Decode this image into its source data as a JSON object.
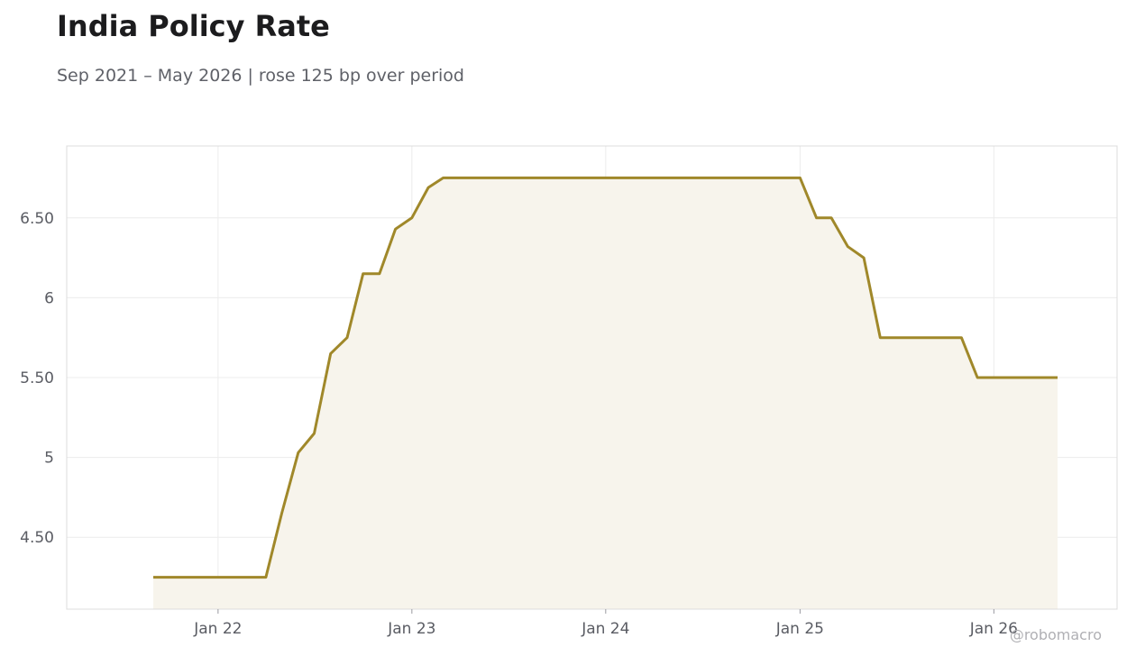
{
  "header": {
    "title": "India Policy Rate",
    "subtitle": "Sep 2021 – May 2026 | rose 125 bp over period"
  },
  "watermark": "@robomacro",
  "colors": {
    "line": "#a0882a",
    "fill": "#f7f4ec",
    "grid": "#ececec",
    "frame": "#dcdcdc"
  },
  "chart_data": {
    "type": "area",
    "title": "India Policy Rate",
    "xlabel": "",
    "ylabel": "",
    "grid": true,
    "legend": "none",
    "xlim": [
      "2021-03-22",
      "2026-08-21"
    ],
    "ylim": [
      4.05,
      6.95
    ],
    "x_ticks": [
      {
        "date": "2022-01-01",
        "label": "Jan 22"
      },
      {
        "date": "2023-01-01",
        "label": "Jan 23"
      },
      {
        "date": "2024-01-01",
        "label": "Jan 24"
      },
      {
        "date": "2025-01-01",
        "label": "Jan 25"
      },
      {
        "date": "2026-01-01",
        "label": "Jan 26"
      }
    ],
    "y_ticks": [
      {
        "value": 4.5,
        "label": "4.50"
      },
      {
        "value": 5.0,
        "label": "5"
      },
      {
        "value": 5.5,
        "label": "5.50"
      },
      {
        "value": 6.0,
        "label": "6"
      },
      {
        "value": 6.5,
        "label": "6.50"
      }
    ],
    "series": [
      {
        "points": [
          {
            "x": "2021-09-01",
            "y": 4.25
          },
          {
            "x": "2022-04-01",
            "y": 4.25
          },
          {
            "x": "2022-05-01",
            "y": 4.65
          },
          {
            "x": "2022-06-01",
            "y": 5.03
          },
          {
            "x": "2022-07-01",
            "y": 5.15
          },
          {
            "x": "2022-08-01",
            "y": 5.65
          },
          {
            "x": "2022-09-01",
            "y": 5.75
          },
          {
            "x": "2022-10-01",
            "y": 6.15
          },
          {
            "x": "2022-11-01",
            "y": 6.15
          },
          {
            "x": "2022-12-01",
            "y": 6.43
          },
          {
            "x": "2023-01-01",
            "y": 6.5
          },
          {
            "x": "2023-02-01",
            "y": 6.69
          },
          {
            "x": "2023-03-01",
            "y": 6.75
          },
          {
            "x": "2025-01-01",
            "y": 6.75
          },
          {
            "x": "2025-02-01",
            "y": 6.5
          },
          {
            "x": "2025-03-01",
            "y": 6.5
          },
          {
            "x": "2025-04-01",
            "y": 6.32
          },
          {
            "x": "2025-05-01",
            "y": 6.25
          },
          {
            "x": "2025-06-01",
            "y": 5.75
          },
          {
            "x": "2025-11-01",
            "y": 5.75
          },
          {
            "x": "2025-12-01",
            "y": 5.5
          },
          {
            "x": "2026-05-01",
            "y": 5.5
          }
        ]
      }
    ]
  }
}
